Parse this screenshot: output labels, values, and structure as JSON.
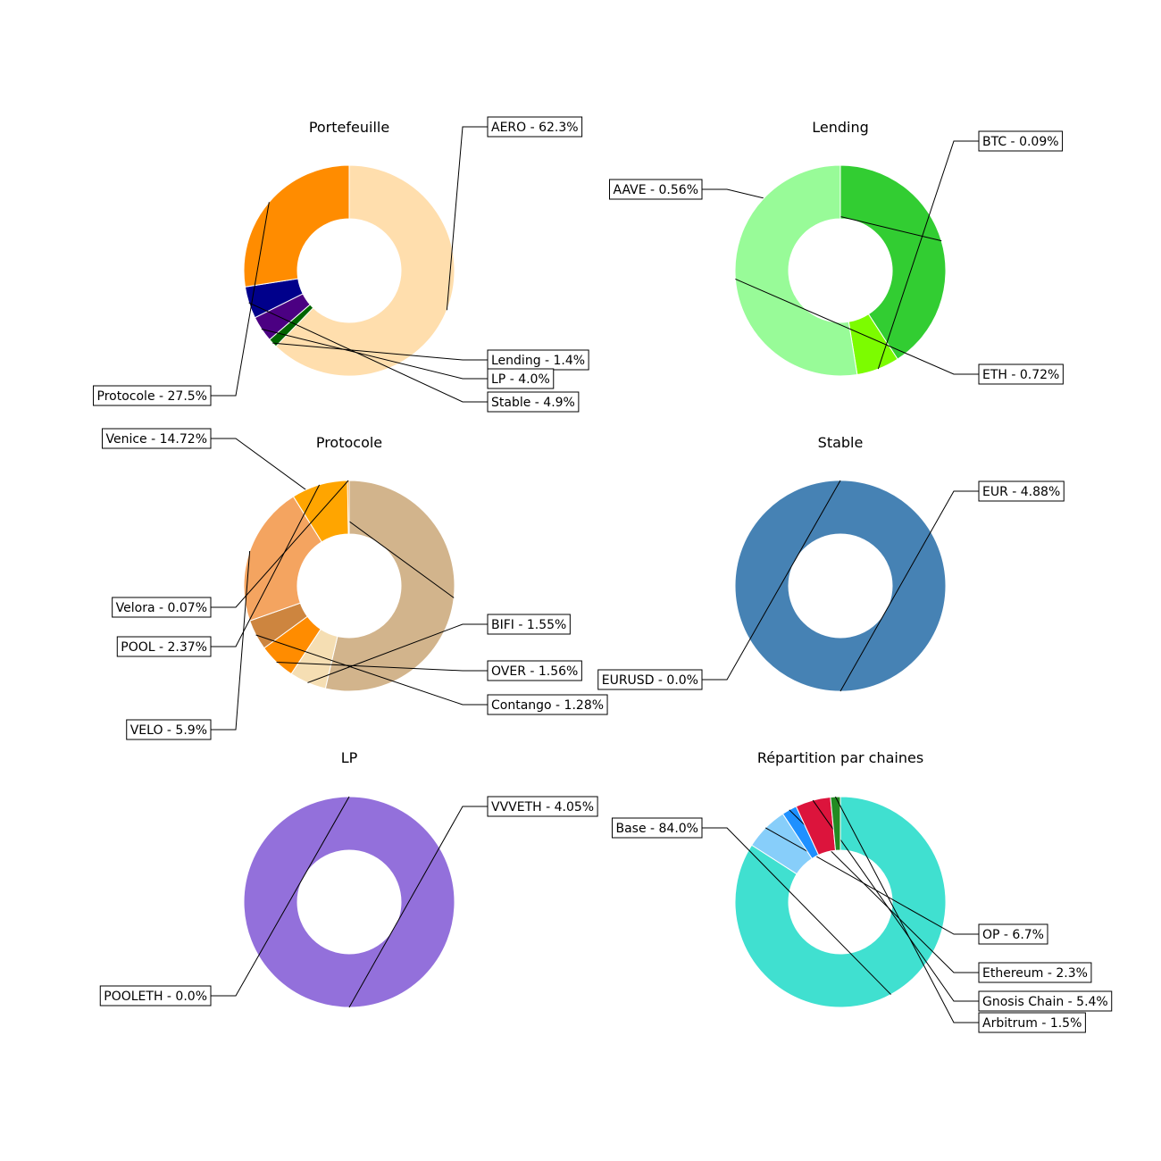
{
  "chart_data": [
    {
      "type": "donut",
      "title": "Portefeuille",
      "labels": [
        "AERO - 62.3%",
        "Lending - 1.4%",
        "LP - 4.0%",
        "Stable - 4.9%",
        "Protocole - 27.5%"
      ],
      "values": [
        62.3,
        1.4,
        4.0,
        4.9,
        27.5
      ],
      "colors": [
        "#FFDEAD",
        "#006400",
        "#4B0082",
        "#00008B",
        "#FF8C00"
      ]
    },
    {
      "type": "donut",
      "title": "Lending",
      "labels": [
        "AAVE - 0.56%",
        "BTC - 0.09%",
        "ETH - 0.72%"
      ],
      "values": [
        0.56,
        0.09,
        0.72
      ],
      "colors": [
        "#32CD32",
        "#7CFC00",
        "#98FB98"
      ]
    },
    {
      "type": "donut",
      "title": "Protocole",
      "labels": [
        "Venice - 14.72%",
        "BIFI - 1.55%",
        "OVER - 1.56%",
        "Contango - 1.28%",
        "VELO - 5.9%",
        "POOL - 2.37%",
        "Velora - 0.07%"
      ],
      "values": [
        14.72,
        1.55,
        1.56,
        1.28,
        5.9,
        2.37,
        0.07
      ],
      "colors": [
        "#D2B48C",
        "#F5DEB3",
        "#FF8C00",
        "#CD853F",
        "#F4A460",
        "#FFA500",
        "#FF8C00"
      ]
    },
    {
      "type": "donut",
      "title": "Stable",
      "labels": [
        "EUR - 4.88%",
        "EURUSD - 0.0%"
      ],
      "values": [
        4.88,
        0.0
      ],
      "colors": [
        "#4682B4",
        "#5F9EA0"
      ]
    },
    {
      "type": "donut",
      "title": "LP",
      "labels": [
        "VVVETH - 4.05%",
        "POOLETH - 0.0%"
      ],
      "values": [
        4.05,
        0.0
      ],
      "colors": [
        "#9370DB",
        "#8A2BE2"
      ]
    },
    {
      "type": "donut",
      "title": "Répartition par chaines",
      "labels": [
        "Base - 84.0%",
        "OP - 6.7%",
        "Ethereum - 2.3%",
        "Gnosis Chain - 5.4%",
        "Arbitrum - 1.5%"
      ],
      "values": [
        84.0,
        6.7,
        2.3,
        5.4,
        1.5
      ],
      "colors": [
        "#40E0D0",
        "#87CEFA",
        "#1E90FF",
        "#DC143C",
        "#228B22"
      ]
    }
  ]
}
